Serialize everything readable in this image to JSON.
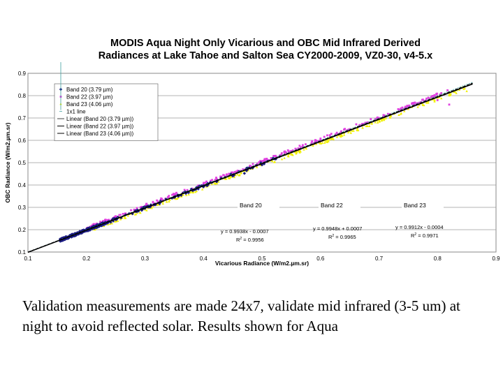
{
  "chart_data": {
    "type": "scatter",
    "title": "MODIS Aqua Night Only Vicarious and OBC Mid Infrared Derived Radiances at Lake Tahoe and Salton Sea CY2000-2009, VZ0-30, v4-5.x",
    "title_lines": [
      "MODIS Aqua Night Only Vicarious and OBC Mid Infrared Derived",
      "Radiances at Lake Tahoe and Salton Sea CY2000-2009, VZ0-30, v4-5.x"
    ],
    "xlabel": "Vicarious Radiance (W/m2.µm.sr)",
    "ylabel": "OBC Radiance (W/m2.µm.sr)",
    "xlim": [
      0.1,
      0.9
    ],
    "ylim": [
      0.1,
      0.9
    ],
    "xticks": [
      "0.1",
      "0.2",
      "0.3",
      "0.4",
      "0.5",
      "0.6",
      "0.7",
      "0.8",
      "0.9"
    ],
    "yticks": [
      "0.1",
      "0.2",
      "0.3",
      "0.4",
      "0.5",
      "0.6",
      "0.7",
      "0.8",
      "0.9"
    ],
    "grid": true,
    "legend_position": "top-left",
    "series": [
      {
        "name": "Band 20 (3.79 µm)",
        "color": "#1a1a80",
        "marker": "diamond",
        "x_range": [
          0.155,
          0.53
        ],
        "fit": {
          "slope": 0.9938,
          "intercept": -0.0007
        },
        "points": [
          [
            0.16,
            0.152
          ],
          [
            0.17,
            0.163
          ],
          [
            0.18,
            0.172
          ],
          [
            0.19,
            0.185
          ],
          [
            0.2,
            0.195
          ],
          [
            0.21,
            0.204
          ],
          [
            0.22,
            0.214
          ],
          [
            0.23,
            0.222
          ],
          [
            0.25,
            0.245
          ],
          [
            0.3,
            0.295
          ],
          [
            0.35,
            0.345
          ],
          [
            0.4,
            0.398
          ],
          [
            0.45,
            0.44
          ],
          [
            0.47,
            0.452
          ],
          [
            0.5,
            0.49
          ],
          [
            0.53,
            0.527
          ]
        ]
      },
      {
        "name": "Band 22 (3.97 µm)",
        "color": "#e040e0",
        "marker": "square",
        "x_range": [
          0.2,
          0.82
        ],
        "fit": {
          "slope": 0.9948,
          "intercept": 0.0007
        },
        "points": [
          [
            0.2,
            0.2
          ],
          [
            0.25,
            0.252
          ],
          [
            0.3,
            0.302
          ],
          [
            0.35,
            0.354
          ],
          [
            0.4,
            0.405
          ],
          [
            0.45,
            0.455
          ],
          [
            0.5,
            0.505
          ],
          [
            0.55,
            0.552
          ],
          [
            0.6,
            0.6
          ],
          [
            0.65,
            0.65
          ],
          [
            0.7,
            0.7
          ],
          [
            0.75,
            0.75
          ],
          [
            0.8,
            0.78
          ],
          [
            0.82,
            0.76
          ]
        ]
      },
      {
        "name": "Band 23 (4.06 µm)",
        "color": "#f0f000",
        "marker": "triangle",
        "x_range": [
          0.21,
          0.85
        ],
        "fit": {
          "slope": 0.9912,
          "intercept": -0.0004
        },
        "points": [
          [
            0.22,
            0.212
          ],
          [
            0.25,
            0.242
          ],
          [
            0.3,
            0.29
          ],
          [
            0.35,
            0.34
          ],
          [
            0.4,
            0.39
          ],
          [
            0.45,
            0.44
          ],
          [
            0.5,
            0.49
          ],
          [
            0.55,
            0.54
          ],
          [
            0.6,
            0.59
          ],
          [
            0.65,
            0.64
          ],
          [
            0.7,
            0.69
          ],
          [
            0.75,
            0.74
          ],
          [
            0.8,
            0.79
          ],
          [
            0.85,
            0.82
          ]
        ]
      }
    ],
    "legend": [
      {
        "label": "Band 20 (3.79 µm)",
        "kind": "marker",
        "color": "#1a1a80",
        "marker": "diamond"
      },
      {
        "label": "Band 22 (3.97 µm)",
        "kind": "marker",
        "color": "#e040e0",
        "marker": "square"
      },
      {
        "label": "Band 23 (4.06 µm)",
        "kind": "marker",
        "color": "#f0f000",
        "marker": "triangle"
      },
      {
        "label": "1x1 line",
        "kind": "marker",
        "color": "#40a0a0",
        "marker": "cross"
      },
      {
        "label": "Linear (Band 20 (3.79 µm))",
        "kind": "line",
        "color": "#404040"
      },
      {
        "label": "Linear (Band 22 (3.97 µm))",
        "kind": "line",
        "color": "#000000"
      },
      {
        "label": "Linear (Band 23 (4.06 µm))",
        "kind": "line",
        "color": "#000000"
      }
    ],
    "annotations": [
      {
        "label": "Band 20",
        "eq": "y = 0.9938x - 0.0007",
        "r2_value": " = 0.9956"
      },
      {
        "label": "Band 22",
        "eq": "y = 0.9948x + 0.0007",
        "r2_value": " = 0.9965"
      },
      {
        "label": "Band 23",
        "eq": "y = 0.9912x - 0.0004",
        "r2_value": " = 0.9971"
      }
    ]
  },
  "caption": "Validation measurements are made 24x7, validate mid infrared (3-5 um) at night to avoid reflected solar. Results shown for Aqua"
}
